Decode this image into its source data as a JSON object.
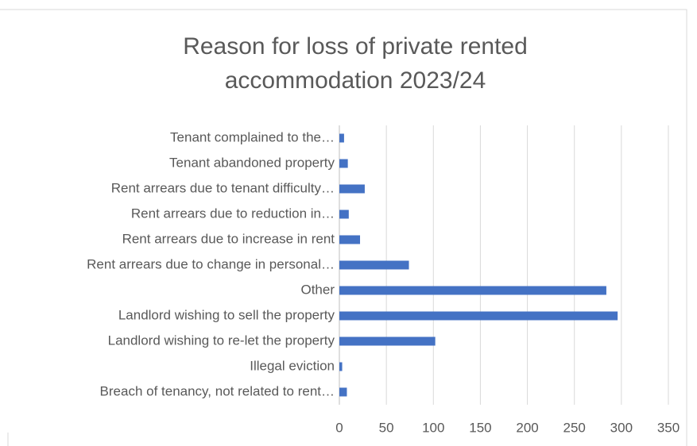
{
  "chart_data": {
    "type": "bar",
    "orientation": "horizontal",
    "title": [
      "Reason for loss of private rented",
      "accommodation 2023/24"
    ],
    "categories": [
      "Tenant complained to the…",
      "Tenant abandoned property",
      "Rent arrears due to tenant difficulty…",
      "Rent arrears due to reduction in…",
      "Rent arrears due to increase in rent",
      "Rent arrears due to change in personal…",
      "Other",
      "Landlord wishing to sell the property",
      "Landlord wishing to re-let the property",
      "Illegal eviction",
      "Breach of tenancy, not related to rent…"
    ],
    "values": [
      5,
      9,
      27,
      10,
      22,
      74,
      284,
      296,
      102,
      3,
      8
    ],
    "color": "#4472c4",
    "xlim": [
      0,
      350
    ],
    "xticks": [
      0,
      50,
      100,
      150,
      200,
      250,
      300,
      350
    ],
    "grid": true
  }
}
